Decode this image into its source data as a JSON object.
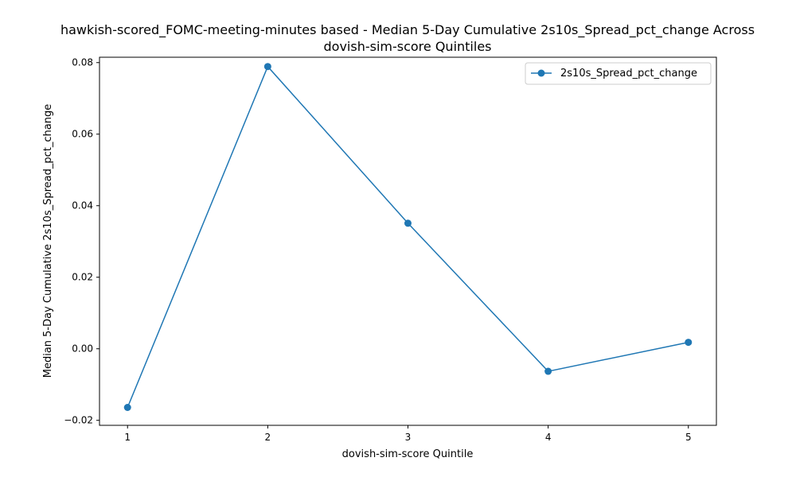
{
  "chart_data": {
    "type": "line",
    "title_line1": "hawkish-scored_FOMC-meeting-minutes based - Median 5-Day Cumulative 2s10s_Spread_pct_change Across",
    "title_line2": "dovish-sim-score Quintiles",
    "xlabel": "dovish-sim-score Quintile",
    "ylabel": "Median 5-Day Cumulative 2s10s_Spread_pct_change",
    "x": [
      1,
      2,
      3,
      4,
      5
    ],
    "x_tick_labels": [
      "1",
      "2",
      "3",
      "4",
      "5"
    ],
    "xlim": [
      0.8,
      5.2
    ],
    "ylim": [
      -0.0214,
      0.0815
    ],
    "y_ticks": [
      -0.02,
      0.0,
      0.02,
      0.04,
      0.06,
      0.08
    ],
    "y_tick_labels": [
      "−0.02",
      "0.00",
      "0.02",
      "0.04",
      "0.06",
      "0.08"
    ],
    "series": [
      {
        "name": "2s10s_Spread_pct_change",
        "values": [
          -0.0164,
          0.0789,
          0.0351,
          -0.0063,
          0.0018
        ],
        "color": "#1f77b4",
        "marker": "circle"
      }
    ],
    "legend": {
      "position": "top-right"
    },
    "grid": false
  }
}
